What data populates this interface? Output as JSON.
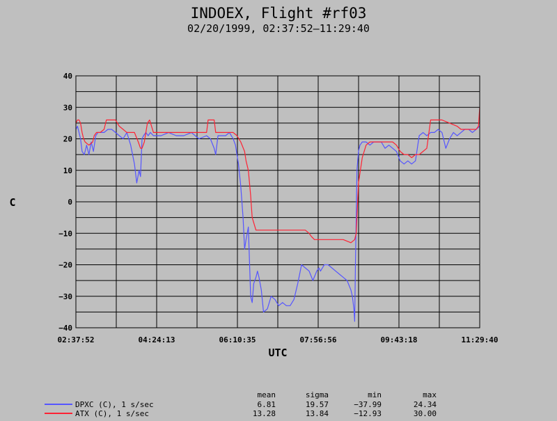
{
  "chart_data": {
    "type": "line",
    "title": "INDOEX, Flight #rf03",
    "subtitle": "02/20/1999, 02:37:52–11:29:40",
    "xlabel": "UTC",
    "ylabel": "C",
    "xlim": [
      "02:37:52",
      "11:29:40"
    ],
    "x_ticks": [
      "02:37:52",
      "04:24:13",
      "06:10:35",
      "07:56:56",
      "09:43:18",
      "11:29:40"
    ],
    "ylim": [
      -40,
      40
    ],
    "y_ticks": [
      "40",
      "30",
      "20",
      "10",
      "0",
      "−10",
      "−20",
      "−30",
      "−40"
    ],
    "grid": true,
    "series": [
      {
        "name": "DPXC (C), 1 s/sec",
        "color": "#5555ff",
        "x": [
          "02:37:52",
          "02:40:00",
          "02:42:00",
          "02:44:00",
          "02:46:00",
          "02:49:00",
          "02:52:00",
          "02:55:00",
          "02:58:00",
          "03:01:00",
          "03:04:00",
          "03:07:00",
          "03:10:00",
          "03:15:00",
          "03:20:00",
          "03:25:00",
          "03:30:00",
          "03:35:00",
          "03:40:00",
          "03:45:00",
          "03:50:00",
          "03:55:00",
          "03:58:00",
          "04:01:00",
          "04:03:00",
          "04:05:00",
          "04:07:00",
          "04:10:00",
          "04:13:00",
          "04:16:00",
          "04:20:00",
          "04:25:00",
          "04:30:00",
          "04:40:00",
          "04:50:00",
          "05:00:00",
          "05:10:00",
          "05:20:00",
          "05:30:00",
          "05:35:00",
          "05:40:00",
          "05:42:00",
          "05:45:00",
          "05:50:00",
          "05:55:00",
          "06:00:00",
          "06:05:00",
          "06:08:00",
          "06:12:00",
          "06:15:00",
          "06:18:00",
          "06:20:00",
          "06:22:00",
          "06:25:00",
          "06:28:00",
          "06:30:00",
          "06:32:00",
          "06:35:00",
          "06:37:00",
          "06:39:00",
          "06:42:00",
          "06:45:00",
          "06:50:00",
          "06:55:00",
          "07:00:00",
          "07:05:00",
          "07:10:00",
          "07:15:00",
          "07:20:00",
          "07:25:00",
          "07:30:00",
          "07:35:00",
          "07:40:00",
          "07:45:00",
          "07:50:00",
          "07:55:00",
          "07:58:00",
          "08:00:00",
          "08:05:00",
          "08:10:00",
          "08:15:00",
          "08:20:00",
          "08:25:00",
          "08:30:00",
          "08:35:00",
          "08:40:00",
          "08:42:00",
          "08:44:00",
          "08:45:00",
          "08:46:00",
          "08:47:00",
          "08:48:00",
          "08:50:00",
          "08:52:00",
          "08:55:00",
          "09:00:00",
          "09:05:00",
          "09:10:00",
          "09:15:00",
          "09:20:00",
          "09:25:00",
          "09:30:00",
          "09:35:00",
          "09:40:00",
          "09:45:00",
          "09:50:00",
          "09:55:00",
          "10:00:00",
          "10:05:00",
          "10:10:00",
          "10:15:00",
          "10:20:00",
          "10:25:00",
          "10:30:00",
          "10:35:00",
          "10:40:00",
          "10:45:00",
          "10:50:00",
          "10:55:00",
          "11:00:00",
          "11:05:00",
          "11:10:00",
          "11:15:00",
          "11:20:00",
          "11:25:00",
          "11:29:40"
        ],
        "y": [
          23,
          24,
          22,
          20,
          16,
          15,
          18,
          15,
          19,
          16,
          21,
          22,
          22,
          22,
          23,
          23,
          22,
          21,
          20,
          22,
          18,
          12,
          6,
          10,
          8,
          20,
          21,
          22,
          21,
          22,
          21,
          21,
          21,
          22,
          21,
          21,
          22,
          20,
          21,
          20,
          17,
          15,
          21,
          21,
          21,
          22,
          20,
          18,
          12,
          5,
          -5,
          -15,
          -12,
          -8,
          -30,
          -32,
          -26,
          -24,
          -22,
          -24,
          -28,
          -35,
          -34,
          -30,
          -31,
          -33,
          -32,
          -33,
          -33,
          -31,
          -26,
          -20,
          -21,
          -22,
          -25,
          -22,
          -21,
          -22,
          -20,
          -20,
          -21,
          -22,
          -23,
          -24,
          -25,
          -28,
          -30,
          -34,
          -38,
          -20,
          -5,
          10,
          16,
          18,
          19,
          19,
          18,
          19,
          19,
          19,
          17,
          18,
          17,
          16,
          13,
          12,
          13,
          12,
          13,
          21,
          22,
          21,
          22,
          22,
          23,
          22,
          17,
          20,
          22,
          21,
          22,
          23,
          23,
          22,
          23,
          24
        ]
      },
      {
        "name": "ATX (C), 1 s/sec",
        "color": "#ff2233",
        "x": [
          "02:37:52",
          "02:40:00",
          "02:42:00",
          "02:44:00",
          "02:46:00",
          "02:48:00",
          "02:50:00",
          "02:55:00",
          "03:00:00",
          "03:02:00",
          "03:05:00",
          "03:10:00",
          "03:15:00",
          "03:18:00",
          "03:25:00",
          "03:30:00",
          "03:35:00",
          "03:40:00",
          "03:45:00",
          "03:50:00",
          "03:55:00",
          "04:00:00",
          "04:03:00",
          "04:05:00",
          "04:08:00",
          "04:10:00",
          "04:12:00",
          "04:15:00",
          "04:20:00",
          "04:25:00",
          "04:40:00",
          "04:55:00",
          "05:10:00",
          "05:20:00",
          "05:30:00",
          "05:32:00",
          "05:40:00",
          "05:42:00",
          "05:50:00",
          "06:00:00",
          "06:05:00",
          "06:10:00",
          "06:15:00",
          "06:20:00",
          "06:22:00",
          "06:25:00",
          "06:28:00",
          "06:30:00",
          "06:35:00",
          "06:40:00",
          "06:50:00",
          "07:00:00",
          "07:10:00",
          "07:20:00",
          "07:30:00",
          "07:40:00",
          "07:45:00",
          "07:48:00",
          "07:52:00",
          "08:00:00",
          "08:10:00",
          "08:20:00",
          "08:30:00",
          "08:40:00",
          "08:45:00",
          "08:47:00",
          "08:50:00",
          "08:55:00",
          "09:00:00",
          "09:05:00",
          "09:10:00",
          "09:20:00",
          "09:30:00",
          "09:35:00",
          "09:40:00",
          "09:45:00",
          "09:50:00",
          "09:55:00",
          "10:00:00",
          "10:05:00",
          "10:10:00",
          "10:15:00",
          "10:20:00",
          "10:25:00",
          "10:30:00",
          "10:35:00",
          "10:40:00",
          "10:50:00",
          "11:00:00",
          "11:05:00",
          "11:10:00",
          "11:15:00",
          "11:20:00",
          "11:25:00",
          "11:28:00",
          "11:29:40"
        ],
        "y": [
          25,
          26,
          26,
          25,
          22,
          20,
          19,
          18,
          19,
          21,
          22,
          22,
          23,
          26,
          26,
          26,
          24,
          23,
          22,
          22,
          22,
          19,
          17,
          17,
          19,
          22,
          25,
          26,
          22,
          22,
          22,
          22,
          22,
          22,
          22,
          26,
          26,
          22,
          22,
          22,
          22,
          21,
          19,
          16,
          13,
          10,
          2,
          -5,
          -9,
          -9,
          -9,
          -9,
          -9,
          -9,
          -9,
          -9,
          -10,
          -11,
          -12,
          -12,
          -12,
          -12,
          -12,
          -13,
          -12,
          -10,
          6,
          14,
          18,
          19,
          19,
          19,
          19,
          19,
          18,
          16,
          15,
          15,
          14,
          15,
          15,
          16,
          17,
          26,
          26,
          26,
          26,
          25,
          24,
          23,
          23,
          23,
          23,
          23,
          24,
          30
        ]
      }
    ],
    "statistics": {
      "headers": [
        "mean",
        "sigma",
        "min",
        "max"
      ],
      "rows": [
        {
          "series": "DPXC (C), 1 s/sec",
          "values": [
            "6.81",
            "19.57",
            "−37.99",
            "24.34"
          ]
        },
        {
          "series": "ATX (C), 1 s/sec",
          "values": [
            "13.28",
            "13.84",
            "−12.93",
            "30.00"
          ]
        }
      ]
    }
  }
}
